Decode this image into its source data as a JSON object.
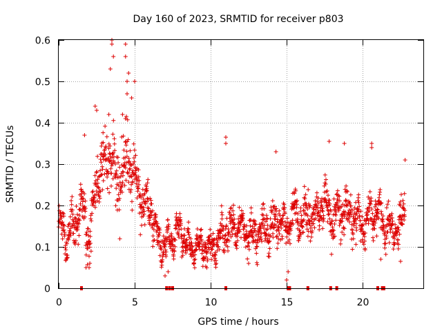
{
  "chart_data": {
    "type": "scatter",
    "title": "Day 160 of 2023, SRMTID for receiver p803",
    "xlabel": "GPS time / hours",
    "ylabel": "SRMTID / TECUs",
    "xlim": [
      0,
      24
    ],
    "ylim": [
      0,
      0.6
    ],
    "xticks": [
      0,
      5,
      10,
      15,
      20
    ],
    "xtick_labels": [
      "0",
      "5",
      "10",
      "15",
      "20"
    ],
    "yticks": [
      0,
      0.1,
      0.2,
      0.3,
      0.4,
      0.5,
      0.6
    ],
    "ytick_labels": [
      "0",
      "0.1",
      "0.2",
      "0.3",
      "0.4",
      "0.5",
      "0.6"
    ],
    "grid": true,
    "marker": "plus",
    "color": "#dd0000",
    "zero_markers_x": [
      1.5,
      7.1,
      7.3,
      7.5,
      11.0,
      15.1,
      15.2,
      16.4,
      17.9,
      18.3,
      21.0,
      21.3,
      21.4
    ],
    "trend": [
      [
        0.0,
        0.15
      ],
      [
        0.5,
        0.12
      ],
      [
        1.0,
        0.15
      ],
      [
        1.5,
        0.2
      ],
      [
        2.0,
        0.12
      ],
      [
        2.5,
        0.26
      ],
      [
        3.0,
        0.3
      ],
      [
        3.5,
        0.32
      ],
      [
        4.0,
        0.25
      ],
      [
        4.5,
        0.32
      ],
      [
        5.0,
        0.28
      ],
      [
        5.5,
        0.2
      ],
      [
        6.0,
        0.2
      ],
      [
        6.5,
        0.12
      ],
      [
        7.0,
        0.1
      ],
      [
        7.5,
        0.13
      ],
      [
        8.0,
        0.14
      ],
      [
        8.5,
        0.1
      ],
      [
        9.0,
        0.1
      ],
      [
        9.5,
        0.1
      ],
      [
        10.0,
        0.1
      ],
      [
        10.5,
        0.12
      ],
      [
        11.0,
        0.14
      ],
      [
        11.5,
        0.15
      ],
      [
        12.0,
        0.14
      ],
      [
        12.5,
        0.13
      ],
      [
        13.0,
        0.13
      ],
      [
        13.5,
        0.14
      ],
      [
        14.0,
        0.15
      ],
      [
        14.5,
        0.17
      ],
      [
        15.0,
        0.14
      ],
      [
        15.5,
        0.19
      ],
      [
        16.0,
        0.16
      ],
      [
        16.5,
        0.18
      ],
      [
        17.0,
        0.17
      ],
      [
        17.5,
        0.22
      ],
      [
        18.0,
        0.17
      ],
      [
        18.5,
        0.18
      ],
      [
        19.0,
        0.19
      ],
      [
        19.5,
        0.17
      ],
      [
        20.0,
        0.15
      ],
      [
        20.5,
        0.18
      ],
      [
        21.0,
        0.19
      ],
      [
        21.5,
        0.15
      ],
      [
        22.0,
        0.14
      ],
      [
        22.5,
        0.15
      ],
      [
        22.8,
        0.2
      ]
    ],
    "spread": [
      [
        0.0,
        0.05
      ],
      [
        2.0,
        0.08
      ],
      [
        3.0,
        0.1
      ],
      [
        4.0,
        0.12
      ],
      [
        5.0,
        0.1
      ],
      [
        6.0,
        0.07
      ],
      [
        7.0,
        0.05
      ],
      [
        9.0,
        0.04
      ],
      [
        11.0,
        0.06
      ],
      [
        14.0,
        0.06
      ],
      [
        17.0,
        0.07
      ],
      [
        20.0,
        0.07
      ],
      [
        22.8,
        0.06
      ]
    ],
    "outliers": [
      [
        3.5,
        0.6
      ],
      [
        3.5,
        0.59
      ],
      [
        3.6,
        0.56
      ],
      [
        3.4,
        0.53
      ],
      [
        4.4,
        0.59
      ],
      [
        4.4,
        0.56
      ],
      [
        4.6,
        0.52
      ],
      [
        4.5,
        0.5
      ],
      [
        5.0,
        0.5
      ],
      [
        4.5,
        0.47
      ],
      [
        4.8,
        0.46
      ],
      [
        2.4,
        0.44
      ],
      [
        2.5,
        0.43
      ],
      [
        3.3,
        0.42
      ],
      [
        4.4,
        0.41
      ],
      [
        4.2,
        0.42
      ],
      [
        1.7,
        0.37
      ],
      [
        11.0,
        0.365
      ],
      [
        11.0,
        0.35
      ],
      [
        14.3,
        0.33
      ],
      [
        17.8,
        0.355
      ],
      [
        18.8,
        0.35
      ],
      [
        20.6,
        0.35
      ],
      [
        20.6,
        0.34
      ],
      [
        22.8,
        0.31
      ],
      [
        15.0,
        0.02
      ],
      [
        15.1,
        0.04
      ],
      [
        7.0,
        0.03
      ],
      [
        7.2,
        0.04
      ],
      [
        1.8,
        0.05
      ],
      [
        2.0,
        0.05
      ],
      [
        12.5,
        0.06
      ],
      [
        21.2,
        0.07
      ],
      [
        22.5,
        0.065
      ]
    ]
  }
}
